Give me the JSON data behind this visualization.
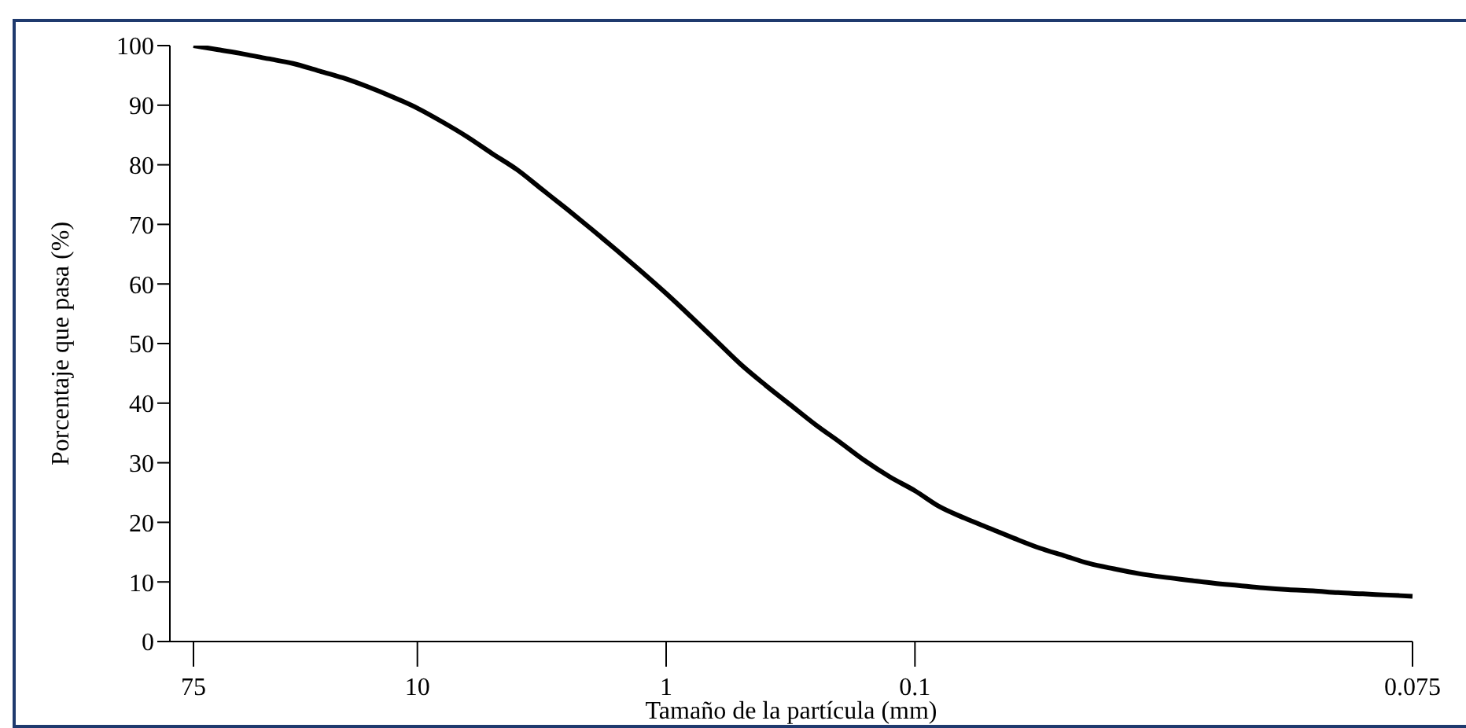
{
  "chart_data": {
    "type": "line",
    "xlabel": "Tamaño de la partícula (mm)",
    "ylabel": "Porcentaje que pasa (%)",
    "categories": [
      "75",
      null,
      null,
      null,
      null,
      null,
      null,
      null,
      null,
      "10",
      null,
      null,
      null,
      null,
      null,
      null,
      null,
      null,
      null,
      "1",
      null,
      null,
      null,
      null,
      null,
      null,
      null,
      null,
      null,
      "0.1",
      null,
      null,
      null,
      null,
      null,
      null,
      null,
      null,
      null,
      null,
      null,
      null,
      null,
      null,
      null,
      null,
      null,
      null,
      null,
      "0.075"
    ],
    "series": [
      {
        "color": "#000000",
        "values": [
          100,
          99.3,
          98.6,
          97.8,
          97.0,
          95.8,
          94.6,
          93.1,
          91.4,
          89.5,
          87.2,
          84.7,
          81.9,
          79.2,
          75.9,
          72.6,
          69.2,
          65.7,
          62.1,
          58.4,
          54.5,
          50.5,
          46.5,
          43,
          39.7,
          36.4,
          33.4,
          30.3,
          27.6,
          25.3,
          22.6,
          20.7,
          19.0,
          17.3,
          15.7,
          14.4,
          13.1,
          12.2,
          11.4,
          10.8,
          10.3,
          9.8,
          9.4,
          9.0,
          8.7,
          8.5,
          8.2,
          8.0,
          7.8,
          7.6
        ]
      }
    ],
    "ylim": [
      0,
      100
    ],
    "yticks": [
      0,
      10,
      20,
      30,
      40,
      50,
      60,
      70,
      80,
      90,
      100
    ],
    "grid": false,
    "legend": false,
    "marker": "none",
    "line_style": "solid"
  }
}
